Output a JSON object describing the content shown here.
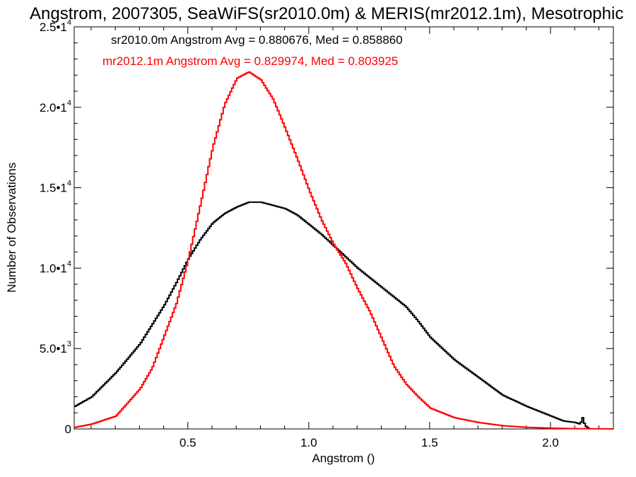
{
  "chart_data": {
    "type": "line",
    "title": "Angstrom, 2007305, SeaWiFS(sr2010.0m) & MERIS(mr2012.1m), Mesotrophic",
    "xlabel": "Angstrom ()",
    "ylabel": "Number of Observations",
    "xlim": [
      0.03,
      2.26
    ],
    "ylim": [
      0,
      25000
    ],
    "x_ticks": [
      {
        "value": 0.5,
        "label": "0.5"
      },
      {
        "value": 1.0,
        "label": "1.0"
      },
      {
        "value": 1.5,
        "label": "1.5"
      },
      {
        "value": 2.0,
        "label": "2.0"
      }
    ],
    "y_ticks": [
      {
        "value": 0,
        "mant": "0",
        "exp": ""
      },
      {
        "value": 5000,
        "mant": "5.0•1",
        "exp": "3"
      },
      {
        "value": 10000,
        "mant": "1.0•1",
        "exp": "4"
      },
      {
        "value": 15000,
        "mant": "1.5•1",
        "exp": "4"
      },
      {
        "value": 20000,
        "mant": "2.0•1",
        "exp": "4"
      },
      {
        "value": 25000,
        "mant": "2.5•1",
        "exp": "4"
      }
    ],
    "annotations": [
      {
        "text": "sr2010.0m Angstrom Avg = 0.880676, Med = 0.858860",
        "color": "#000000"
      },
      {
        "text": "mr2012.1m Angstrom Avg = 0.829974, Med = 0.803925",
        "color": "#ff0000"
      }
    ],
    "series": [
      {
        "color": "#000000",
        "x": [
          0.03,
          0.1,
          0.2,
          0.3,
          0.4,
          0.45,
          0.5,
          0.55,
          0.6,
          0.65,
          0.7,
          0.75,
          0.8,
          0.85,
          0.9,
          0.95,
          1.0,
          1.05,
          1.1,
          1.15,
          1.2,
          1.25,
          1.3,
          1.35,
          1.4,
          1.45,
          1.5,
          1.55,
          1.6,
          1.7,
          1.8,
          1.9,
          2.0,
          2.05,
          2.1,
          2.12,
          2.13,
          2.14,
          2.15,
          2.16
        ],
        "y": [
          1400,
          2000,
          3500,
          5300,
          7700,
          9100,
          10600,
          11800,
          12800,
          13400,
          13800,
          14100,
          14100,
          13900,
          13700,
          13300,
          12700,
          12100,
          11400,
          10700,
          10000,
          9400,
          8800,
          8200,
          7600,
          6700,
          5700,
          5000,
          4300,
          3200,
          2100,
          1400,
          800,
          500,
          400,
          300,
          700,
          200,
          100,
          0
        ]
      },
      {
        "color": "#ff0000",
        "x": [
          0.03,
          0.1,
          0.2,
          0.3,
          0.35,
          0.4,
          0.45,
          0.5,
          0.55,
          0.6,
          0.65,
          0.7,
          0.75,
          0.8,
          0.85,
          0.9,
          0.95,
          1.0,
          1.05,
          1.1,
          1.15,
          1.2,
          1.25,
          1.3,
          1.35,
          1.4,
          1.45,
          1.5,
          1.6,
          1.7,
          1.8,
          1.9,
          2.0,
          2.1,
          2.2,
          2.26
        ],
        "y": [
          100,
          300,
          800,
          2500,
          3800,
          5800,
          7800,
          10600,
          14000,
          17500,
          20200,
          21800,
          22200,
          21700,
          20500,
          18700,
          16800,
          14800,
          13000,
          11500,
          10300,
          8700,
          7300,
          5600,
          3900,
          2800,
          2000,
          1300,
          700,
          400,
          200,
          100,
          50,
          20,
          10,
          0
        ]
      }
    ]
  }
}
